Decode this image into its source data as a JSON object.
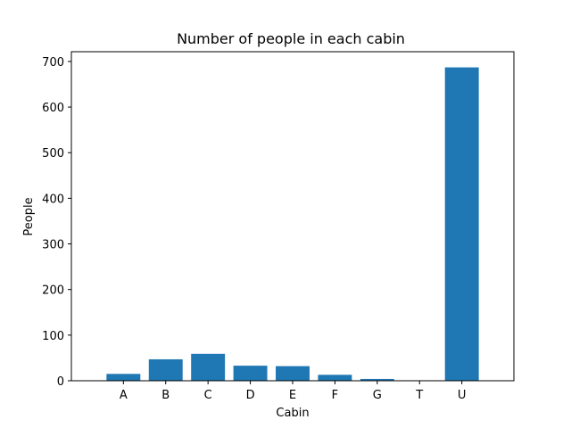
{
  "chart_data": {
    "type": "bar",
    "title": "Number of people in each cabin",
    "xlabel": "Cabin",
    "ylabel": "People",
    "categories": [
      "A",
      "B",
      "C",
      "D",
      "E",
      "F",
      "G",
      "T",
      "U"
    ],
    "values": [
      15,
      47,
      59,
      33,
      32,
      13,
      4,
      1,
      687
    ],
    "ylim": [
      0,
      721.35
    ],
    "yticks": [
      0,
      100,
      200,
      300,
      400,
      500,
      600,
      700
    ],
    "bar_color": "#1f77b4",
    "grid": false,
    "legend": "none"
  }
}
